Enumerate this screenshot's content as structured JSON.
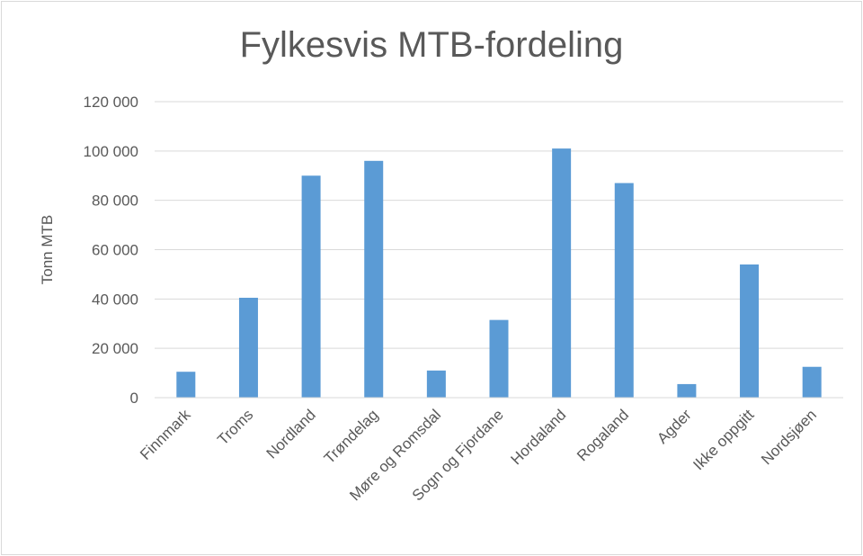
{
  "chart_data": {
    "type": "bar",
    "title": "Fylkesvis MTB-fordeling",
    "xlabel": "",
    "ylabel": "Tonn MTB",
    "categories": [
      "Finnmark",
      "Troms",
      "Nordland",
      "Trøndelag",
      "Møre og Romsdal",
      "Sogn og Fjordane",
      "Hordaland",
      "Rogaland",
      "Agder",
      "Ikke oppgitt",
      "Nordsjøen"
    ],
    "values": [
      10500,
      40500,
      90000,
      96000,
      11000,
      31500,
      101000,
      87000,
      5500,
      54000,
      12500
    ],
    "ylim": [
      0,
      120000
    ],
    "yticks": [
      0,
      20000,
      40000,
      60000,
      80000,
      100000,
      120000
    ],
    "ytick_labels": [
      "0",
      "20 000",
      "40 000",
      "60 000",
      "80 000",
      "100 000",
      "120 000"
    ],
    "grid": true,
    "legend": "none",
    "colors": {
      "bar": "#5b9bd5",
      "grid": "#d9d9d9",
      "text": "#595959"
    }
  }
}
